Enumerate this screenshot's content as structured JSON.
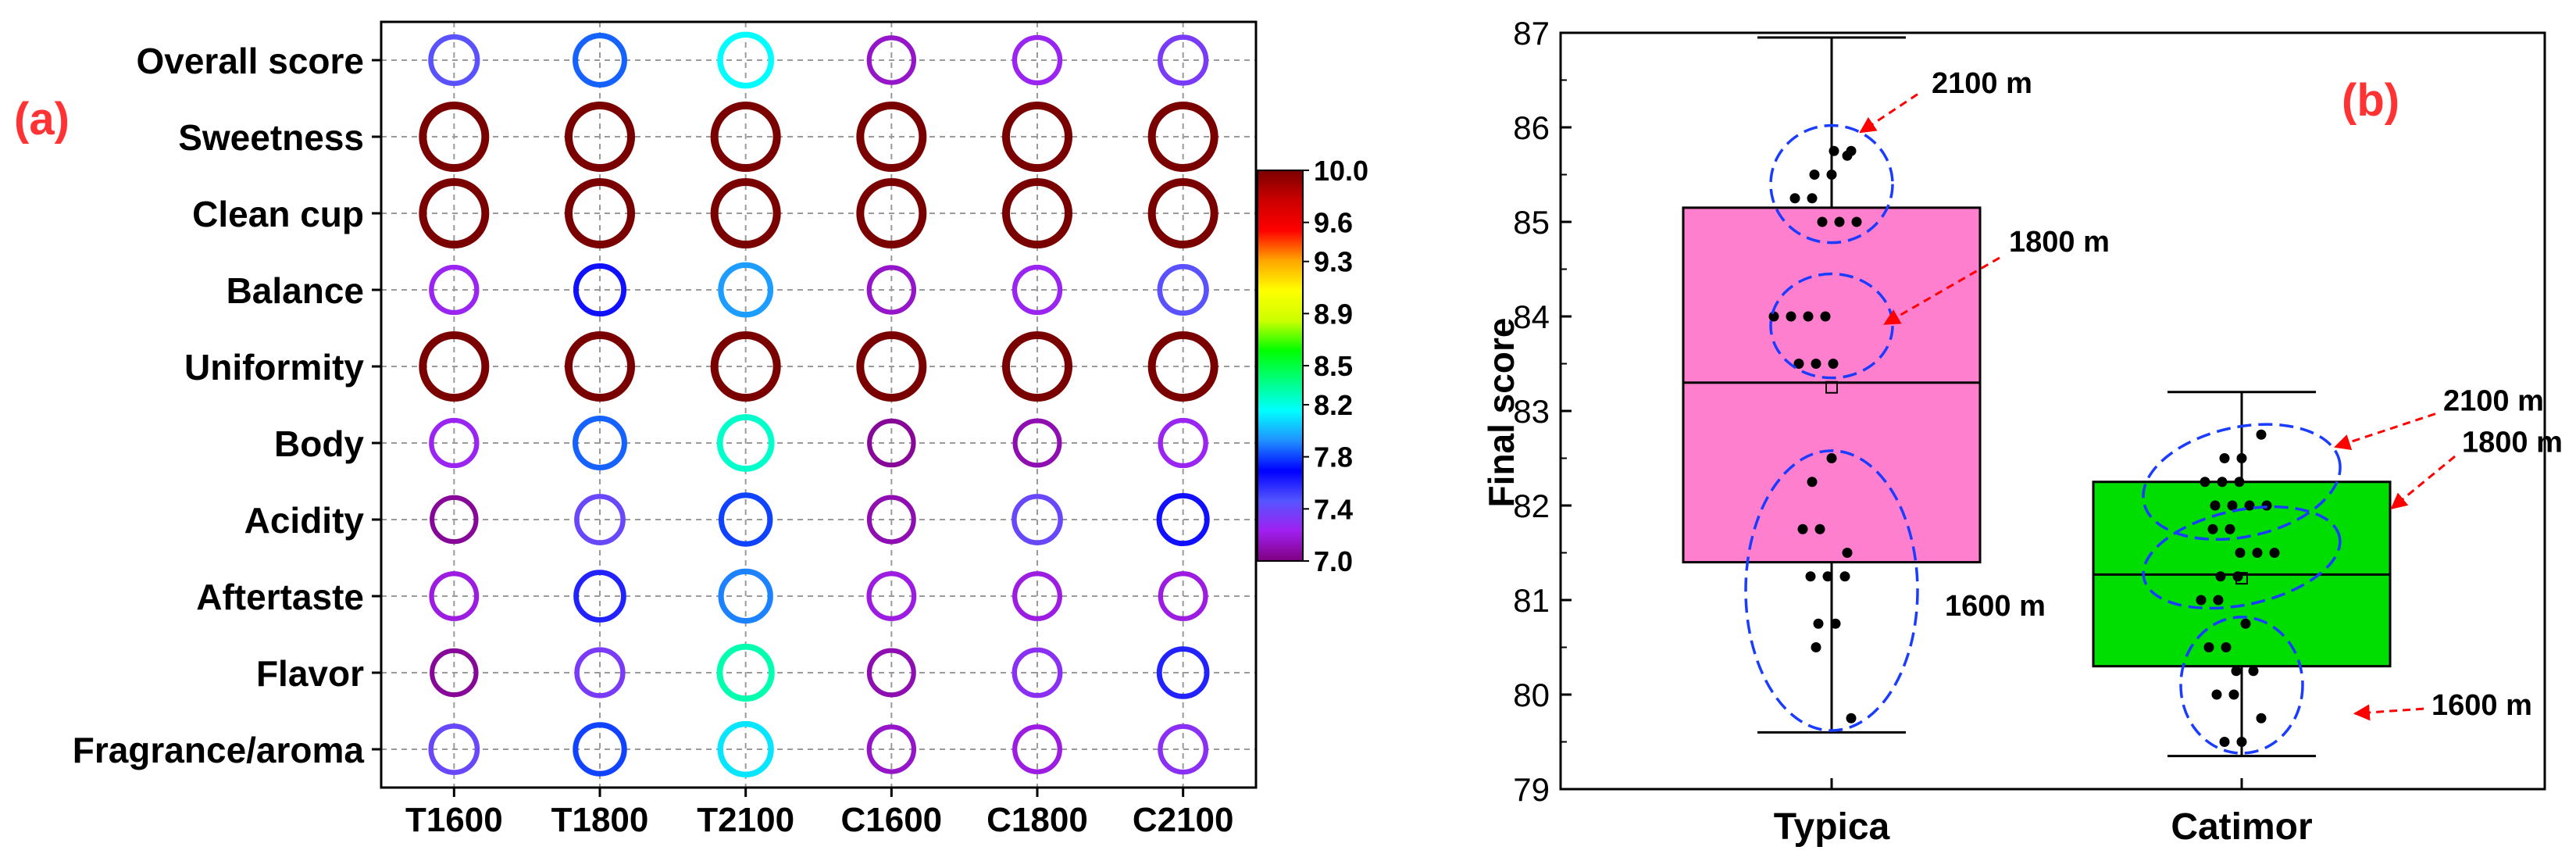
{
  "panel_labels": {
    "a": "(a)",
    "b": "(b)"
  },
  "chart_data": [
    {
      "type": "heatmap",
      "panel": "(a)",
      "columns": [
        "T1600",
        "T1800",
        "T2100",
        "C1600",
        "C1800",
        "C2100"
      ],
      "rows": [
        "Overall score",
        "Sweetness",
        "Clean cup",
        "Balance",
        "Uniformity",
        "Body",
        "Acidity",
        "Aftertaste",
        "Flavor",
        "Fragrance/aroma"
      ],
      "values": [
        [
          7.45,
          7.85,
          8.15,
          7.15,
          7.25,
          7.35
        ],
        [
          10.0,
          10.0,
          10.0,
          10.0,
          10.0,
          10.0
        ],
        [
          10.0,
          10.0,
          10.0,
          10.0,
          10.0,
          10.0
        ],
        [
          7.25,
          7.65,
          7.95,
          7.15,
          7.25,
          7.45
        ],
        [
          10.0,
          10.0,
          10.0,
          10.0,
          10.0,
          10.0
        ],
        [
          7.25,
          7.85,
          8.25,
          7.05,
          7.1,
          7.25
        ],
        [
          7.05,
          7.4,
          7.8,
          7.1,
          7.4,
          7.65
        ],
        [
          7.2,
          7.6,
          7.9,
          7.2,
          7.2,
          7.2
        ],
        [
          7.05,
          7.35,
          8.3,
          7.1,
          7.3,
          7.6
        ],
        [
          7.4,
          7.8,
          8.1,
          7.15,
          7.2,
          7.3
        ]
      ],
      "colorbar": {
        "range": [
          7.0,
          10.0
        ],
        "tick_labels": [
          "10.0",
          "9.6",
          "9.3",
          "8.9",
          "8.5",
          "8.2",
          "7.8",
          "7.4",
          "7.0"
        ],
        "tick_values": [
          10.0,
          9.6,
          9.3,
          8.9,
          8.5,
          8.2,
          7.8,
          7.4,
          7.0
        ],
        "colors": [
          "#800080",
          "#a020f0",
          "#5555ff",
          "#0000ff",
          "#2090ff",
          "#00ffff",
          "#00ff80",
          "#00ff00",
          "#ccff00",
          "#ffff00",
          "#ffa500",
          "#ff0000",
          "#cc0000",
          "#7a0000"
        ]
      },
      "grid": "dashed"
    },
    {
      "type": "box",
      "panel": "(b)",
      "ylabel": "Final score",
      "ylim": [
        79,
        87
      ],
      "yticks": [
        "79",
        "80",
        "81",
        "82",
        "83",
        "84",
        "85",
        "86",
        "87"
      ],
      "categories": [
        "Typica",
        "Catimor"
      ],
      "boxes": [
        {
          "name": "Typica",
          "color": "#ff7fcf",
          "whisker_low": 79.6,
          "q1": 81.4,
          "median": 83.3,
          "q3": 85.15,
          "whisker_high": 86.95,
          "mean": 83.25,
          "points": [
            85.75,
            85.75,
            85.7,
            85.5,
            85.5,
            85.25,
            85.25,
            85.0,
            85.0,
            85.0,
            84.0,
            84.0,
            84.0,
            84.0,
            83.5,
            83.5,
            83.5,
            82.5,
            82.25,
            81.75,
            81.75,
            81.5,
            81.25,
            81.25,
            81.25,
            80.75,
            80.75,
            80.5,
            79.75
          ]
        },
        {
          "name": "Catimor",
          "color": "#00dd00",
          "whisker_low": 79.35,
          "q1": 80.3,
          "median": 81.27,
          "q3": 82.25,
          "whisker_high": 83.2,
          "mean": 81.23,
          "points": [
            82.75,
            82.5,
            82.5,
            82.25,
            82.25,
            82.25,
            82.0,
            82.0,
            82.0,
            82.0,
            81.75,
            81.75,
            81.5,
            81.5,
            81.5,
            81.25,
            81.25,
            81.0,
            81.0,
            80.75,
            80.5,
            80.5,
            80.25,
            80.25,
            80.0,
            80.0,
            79.75,
            79.5,
            79.5
          ]
        }
      ],
      "annotations": [
        {
          "text": "2100 m",
          "group": "Typica"
        },
        {
          "text": "1800 m",
          "group": "Typica"
        },
        {
          "text": "1600 m",
          "group": "Typica"
        },
        {
          "text": "2100 m",
          "group": "Catimor"
        },
        {
          "text": "1800 m",
          "group": "Catimor"
        },
        {
          "text": "1600 m",
          "group": "Catimor"
        }
      ],
      "annotation_color": "#ff0000",
      "ellipse_color": "#1a3cff"
    }
  ]
}
